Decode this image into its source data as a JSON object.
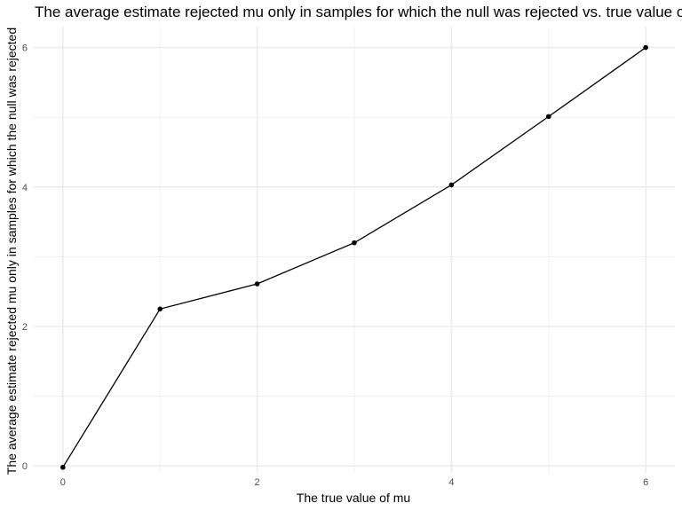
{
  "chart_data": {
    "type": "line",
    "title": "The average estimate rejected mu only in samples for which the null was rejected vs. true value of mu",
    "xlabel": "The true value of mu",
    "ylabel": "The average estimate rejected mu only in samples for which the null was rejected",
    "x": [
      0,
      1,
      2,
      3,
      4,
      5,
      6
    ],
    "series": [
      {
        "values": [
          -0.02,
          2.25,
          2.61,
          3.2,
          4.03,
          5.01,
          6.0
        ]
      }
    ],
    "xlim": [
      -0.3,
      6.3
    ],
    "ylim": [
      -0.1,
      6.3
    ],
    "xticks": [
      0,
      2,
      4,
      6
    ],
    "yticks": [
      0,
      2,
      4,
      6
    ],
    "x_minor_grid": [
      1,
      3,
      5
    ],
    "y_minor_grid": [
      1,
      3,
      5
    ],
    "grid": true,
    "colors": {
      "line": "#000000",
      "grid": "#ebebeb",
      "tick_text": "#4d4d4d"
    }
  }
}
